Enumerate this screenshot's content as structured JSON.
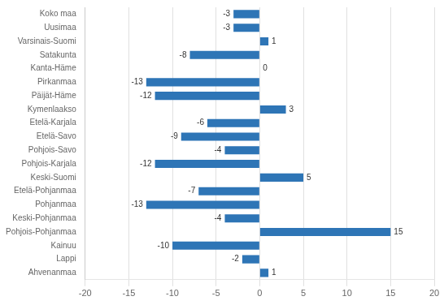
{
  "chart_data": {
    "type": "bar",
    "orientation": "horizontal",
    "categories": [
      "Koko maa",
      "Uusimaa",
      "Varsinais-Suomi",
      "Satakunta",
      "Kanta-Häme",
      "Pirkanmaa",
      "Päijät-Häme",
      "Kymenlaakso",
      "Etelä-Karjala",
      "Etelä-Savo",
      "Pohjois-Savo",
      "Pohjois-Karjala",
      "Keski-Suomi",
      "Etelä-Pohjanmaa",
      "Pohjanmaa",
      "Keski-Pohjanmaa",
      "Pohjois-Pohjanmaa",
      "Kainuu",
      "Lappi",
      "Ahvenanmaa"
    ],
    "values": [
      -3,
      -3,
      1,
      -8,
      0,
      -13,
      -12,
      3,
      -6,
      -9,
      -4,
      -12,
      5,
      -7,
      -13,
      -4,
      15,
      -10,
      -2,
      1
    ],
    "color": "#2E75B6",
    "xlim": [
      -20,
      20
    ],
    "xticks": [
      -20,
      -15,
      -10,
      -5,
      0,
      5,
      10,
      15,
      20
    ],
    "grid": true,
    "data_labels": true
  }
}
